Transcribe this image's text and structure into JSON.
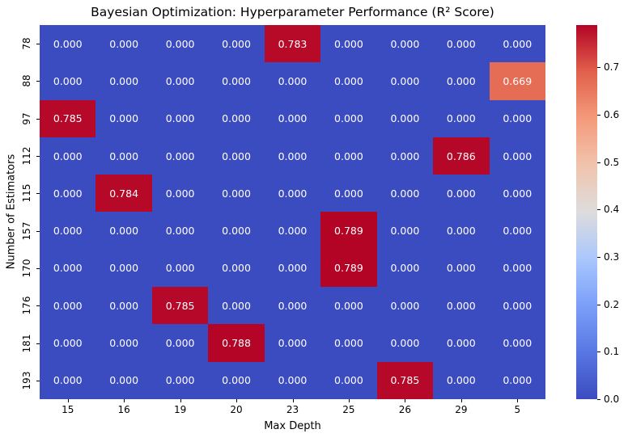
{
  "chart_data": {
    "type": "heatmap",
    "title": "Bayesian Optimization: Hyperparameter Performance (R² Score)",
    "xlabel": "Max Depth",
    "ylabel": "Number of Estimators",
    "x_categories": [
      "15",
      "16",
      "19",
      "20",
      "23",
      "25",
      "26",
      "29",
      "5"
    ],
    "y_categories": [
      "78",
      "88",
      "97",
      "112",
      "115",
      "157",
      "170",
      "176",
      "181",
      "193"
    ],
    "values": [
      [
        0.0,
        0.0,
        0.0,
        0.0,
        0.783,
        0.0,
        0.0,
        0.0,
        0.0
      ],
      [
        0.0,
        0.0,
        0.0,
        0.0,
        0.0,
        0.0,
        0.0,
        0.0,
        0.669
      ],
      [
        0.785,
        0.0,
        0.0,
        0.0,
        0.0,
        0.0,
        0.0,
        0.0,
        0.0
      ],
      [
        0.0,
        0.0,
        0.0,
        0.0,
        0.0,
        0.0,
        0.0,
        0.786,
        0.0
      ],
      [
        0.0,
        0.784,
        0.0,
        0.0,
        0.0,
        0.0,
        0.0,
        0.0,
        0.0
      ],
      [
        0.0,
        0.0,
        0.0,
        0.0,
        0.0,
        0.789,
        0.0,
        0.0,
        0.0
      ],
      [
        0.0,
        0.0,
        0.0,
        0.0,
        0.0,
        0.789,
        0.0,
        0.0,
        0.0
      ],
      [
        0.0,
        0.0,
        0.785,
        0.0,
        0.0,
        0.0,
        0.0,
        0.0,
        0.0
      ],
      [
        0.0,
        0.0,
        0.0,
        0.788,
        0.0,
        0.0,
        0.0,
        0.0,
        0.0
      ],
      [
        0.0,
        0.0,
        0.0,
        0.0,
        0.0,
        0.0,
        0.785,
        0.0,
        0.0
      ]
    ],
    "value_decimals": 3,
    "vmin": 0.0,
    "vmax": 0.789,
    "colormap": "coolwarm",
    "colormap_anchors": {
      "positions": [
        0,
        0.125,
        0.25,
        0.375,
        0.5,
        0.625,
        0.75,
        0.875,
        1
      ],
      "colors": [
        "#3b4cc0",
        "#5977e3",
        "#7b9ff9",
        "#aac7fd",
        "#dddcdc",
        "#f1c4ad",
        "#f49a7b",
        "#e1604b",
        "#b40426"
      ]
    },
    "annotation_color": "#ffffff",
    "colorbar_ticks": [
      0.0,
      0.1,
      0.2,
      0.3,
      0.4,
      0.5,
      0.6,
      0.7
    ],
    "legend_position": "right-colorbar",
    "grid": false
  }
}
